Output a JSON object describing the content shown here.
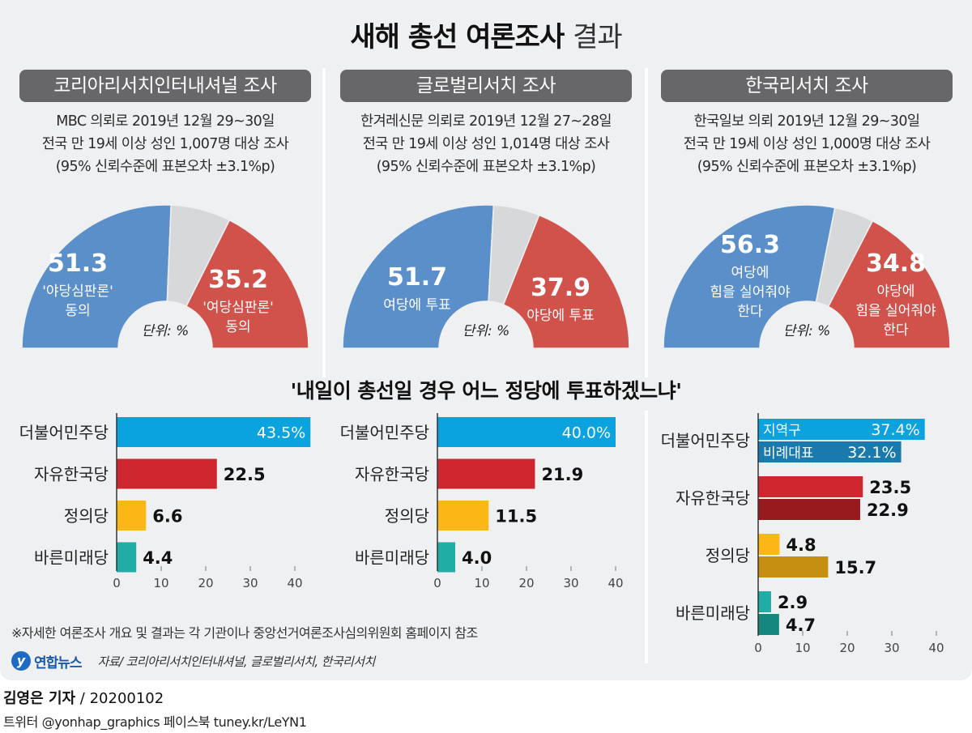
{
  "title": {
    "bold": "새해 총선 여론조사",
    "light": "결과"
  },
  "colors": {
    "blue_slice": "#5b8fc9",
    "red_slice": "#d0524b",
    "gray_slice": "#d7d8da",
    "dem": "#0aa3e0",
    "dem_dark": "#1a79ad",
    "lkp": "#cf2630",
    "lkp_dark": "#971a1e",
    "justice": "#fbb716",
    "justice_dark": "#c68f12",
    "bareun": "#20ada5",
    "bareun_dark": "#16877f",
    "badge_bg": "#676769",
    "panel_bg": "#eff0f2"
  },
  "surveys": [
    {
      "org": "코리아리서치인터내셔널 조사",
      "info": [
        "MBC 의뢰로 2019년 12월 29~30일",
        "전국 만 19세 이상 성인 1,007명 대상 조사",
        "(95% 신뢰수준에 표본오차 ±3.1%p)"
      ],
      "unit_label": "단위: %",
      "left": {
        "value": 51.3,
        "value_label": "51.3",
        "lines": [
          "'야당심판론'",
          "동의"
        ]
      },
      "right": {
        "value": 35.2,
        "value_label": "35.2",
        "lines": [
          "'여당심판론'",
          "동의"
        ]
      }
    },
    {
      "org": "글로벌리서치 조사",
      "info": [
        "한겨레신문 의뢰로 2019년 12월 27~28일",
        "전국 만 19세 이상 성인 1,014명 대상 조사",
        "(95% 신뢰수준에 표본오차 ±3.1%p)"
      ],
      "unit_label": "단위: %",
      "left": {
        "value": 51.7,
        "value_label": "51.7",
        "lines": [
          "여당에 투표"
        ]
      },
      "right": {
        "value": 37.9,
        "value_label": "37.9",
        "lines": [
          "야당에 투표"
        ]
      }
    },
    {
      "org": "한국리서치 조사",
      "info": [
        "한국일보 의뢰 2019년 12월 29~30일",
        "전국 만 19세 이상 성인 1,000명 대상 조사",
        "(95% 신뢰수준에 표본오차 ±3.1%p)"
      ],
      "unit_label": "단위: %",
      "left": {
        "value": 56.3,
        "value_label": "56.3",
        "lines": [
          "여당에",
          "힘을 실어줘야",
          "한다"
        ]
      },
      "right": {
        "value": 34.8,
        "value_label": "34.8",
        "lines": [
          "야당에",
          "힘을 실어줘야",
          "한다"
        ]
      }
    }
  ],
  "question": "'내일이 총선일 경우 어느 정당에 투표하겠느냐'",
  "chart_data": [
    {
      "type": "pie",
      "title": "코리아리서치인터내셔널 조사",
      "categories": [
        "'야당심판론' 동의",
        "기타",
        "'여당심판론' 동의"
      ],
      "values": [
        51.3,
        13.5,
        35.2
      ],
      "unit": "%"
    },
    {
      "type": "pie",
      "title": "글로벌리서치 조사",
      "categories": [
        "여당에 투표",
        "기타",
        "야당에 투표"
      ],
      "values": [
        51.7,
        10.4,
        37.9
      ],
      "unit": "%"
    },
    {
      "type": "pie",
      "title": "한국리서치 조사",
      "categories": [
        "여당에 힘을 실어줘야 한다",
        "기타",
        "야당에 힘을 실어줘야 한다"
      ],
      "values": [
        56.3,
        8.9,
        34.8
      ],
      "unit": "%"
    },
    {
      "type": "bar",
      "title": "코리아리서치인터내셔널 정당지지",
      "categories": [
        "더불어민주당",
        "자유한국당",
        "정의당",
        "바른미래당"
      ],
      "values": [
        43.5,
        22.5,
        6.6,
        4.4
      ],
      "value_labels": [
        "43.5%",
        "22.5",
        "6.6",
        "4.4"
      ],
      "xlim": [
        0,
        40
      ],
      "xticks": [
        "0",
        "10",
        "20",
        "30",
        "40"
      ]
    },
    {
      "type": "bar",
      "title": "글로벌리서치 정당지지",
      "categories": [
        "더불어민주당",
        "자유한국당",
        "정의당",
        "바른미래당"
      ],
      "values": [
        40.0,
        21.9,
        11.5,
        4.0
      ],
      "value_labels": [
        "40.0%",
        "21.9",
        "11.5",
        "4.0"
      ],
      "xlim": [
        0,
        40
      ],
      "xticks": [
        "0",
        "10",
        "20",
        "30",
        "40"
      ]
    },
    {
      "type": "bar",
      "title": "한국리서치 정당지지",
      "categories": [
        "더불어민주당",
        "자유한국당",
        "정의당",
        "바른미래당"
      ],
      "series": [
        {
          "name": "지역구",
          "values": [
            37.4,
            23.5,
            4.8,
            2.9
          ],
          "value_labels": [
            "37.4%",
            "23.5",
            "4.8",
            "2.9"
          ]
        },
        {
          "name": "비례대표",
          "values": [
            32.1,
            22.9,
            15.7,
            4.7
          ],
          "value_labels": [
            "32.1%",
            "22.9",
            "15.7",
            "4.7"
          ]
        }
      ],
      "xlim": [
        0,
        40
      ],
      "xticks": [
        "0",
        "10",
        "20",
        "30",
        "40"
      ]
    }
  ],
  "footer": {
    "note": "※자세한 여론조사 개요 및 결과는 각 기관이나 중앙선거여론조사심의위원회 홈페이지 참조",
    "logo_text": "연합뉴스",
    "source": "자료/ 코리아리서치인터내셔널, 글로벌리서치, 한국리서치",
    "byline_name": "김영은 기자",
    "byline_date": " / 20200102",
    "credits": "트위터 @yonhap_graphics  페이스북 tuney.kr/LeYN1"
  }
}
